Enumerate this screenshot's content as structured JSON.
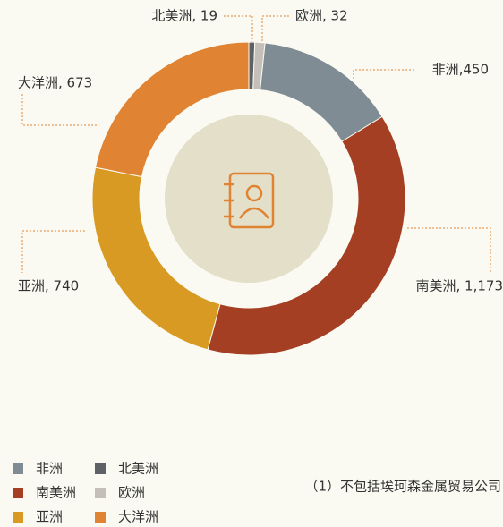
{
  "chart_data": {
    "type": "donut",
    "categories": [
      "北美洲",
      "欧洲",
      "非洲",
      "南美洲",
      "亚洲",
      "大洋洲"
    ],
    "values": [
      19,
      32,
      450,
      1173,
      740,
      673
    ],
    "value_labels": [
      "北美洲, 19",
      "欧洲, 32",
      "非洲,450",
      "南美洲, 1,173",
      "亚洲, 740",
      "大洋洲, 673"
    ],
    "colors": [
      "#5e6166",
      "#c4bfb8",
      "#7f8c94",
      "#a53f23",
      "#d89a22",
      "#e08434"
    ],
    "note": "（1）不包括埃珂森金属贸易公司"
  }
}
